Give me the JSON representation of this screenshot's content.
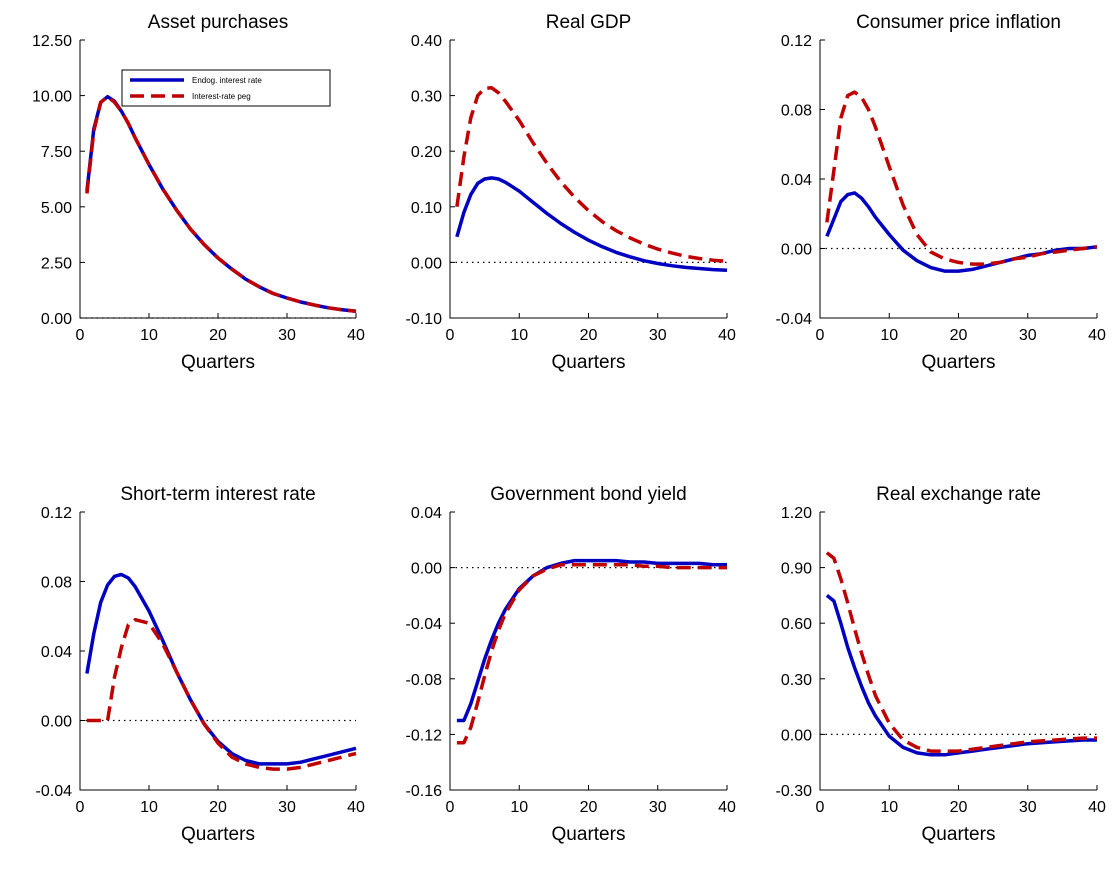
{
  "chart_data": [
    {
      "type": "line",
      "title": "Asset purchases",
      "xlabel": "Quarters",
      "xlim": [
        0,
        40
      ],
      "ylim": [
        0,
        12.5
      ],
      "xticks": [
        0,
        10,
        20,
        30,
        40
      ],
      "yticks": [
        "0.00",
        "2.50",
        "5.00",
        "7.50",
        "10.00",
        "12.50"
      ],
      "legend": {
        "placement": "top-center",
        "entries": [
          "Endog. interest rate",
          "Interest-rate peg"
        ]
      },
      "series": [
        {
          "name": "Endog. interest rate",
          "color": "#0000c0",
          "style": "solid",
          "x": [
            1,
            2,
            3,
            4,
            5,
            6,
            7,
            8,
            10,
            12,
            14,
            16,
            18,
            20,
            22,
            24,
            26,
            28,
            30,
            32,
            34,
            36,
            38,
            40
          ],
          "y": [
            5.7,
            8.5,
            9.7,
            9.95,
            9.75,
            9.3,
            8.75,
            8.1,
            6.9,
            5.8,
            4.85,
            4.0,
            3.3,
            2.7,
            2.2,
            1.75,
            1.4,
            1.1,
            0.9,
            0.72,
            0.58,
            0.46,
            0.37,
            0.3
          ]
        },
        {
          "name": "Interest-rate peg",
          "color": "#c00000",
          "style": "dashed",
          "x": [
            1,
            2,
            3,
            4,
            5,
            6,
            7,
            8,
            10,
            12,
            14,
            16,
            18,
            20,
            22,
            24,
            26,
            28,
            30,
            32,
            34,
            36,
            38,
            40
          ],
          "y": [
            5.6,
            8.4,
            9.7,
            9.95,
            9.7,
            9.3,
            8.75,
            8.1,
            6.9,
            5.8,
            4.85,
            4.0,
            3.3,
            2.7,
            2.2,
            1.75,
            1.4,
            1.1,
            0.9,
            0.72,
            0.58,
            0.46,
            0.37,
            0.3
          ]
        }
      ]
    },
    {
      "type": "line",
      "title": "Real GDP",
      "xlabel": "Quarters",
      "xlim": [
        0,
        40
      ],
      "ylim": [
        -0.1,
        0.4
      ],
      "xticks": [
        0,
        10,
        20,
        30,
        40
      ],
      "yticks": [
        "-0.10",
        "0.00",
        "0.10",
        "0.20",
        "0.30",
        "0.40"
      ],
      "series": [
        {
          "name": "Endog. interest rate",
          "color": "#0000c0",
          "style": "solid",
          "x": [
            1,
            2,
            3,
            4,
            5,
            6,
            7,
            8,
            10,
            12,
            14,
            16,
            18,
            20,
            22,
            24,
            26,
            28,
            30,
            32,
            34,
            36,
            38,
            40
          ],
          "y": [
            0.046,
            0.09,
            0.122,
            0.142,
            0.15,
            0.152,
            0.15,
            0.144,
            0.128,
            0.108,
            0.088,
            0.07,
            0.054,
            0.04,
            0.028,
            0.018,
            0.01,
            0.003,
            -0.002,
            -0.006,
            -0.009,
            -0.011,
            -0.013,
            -0.014
          ]
        },
        {
          "name": "Interest-rate peg",
          "color": "#c00000",
          "style": "dashed",
          "x": [
            1,
            2,
            3,
            4,
            5,
            6,
            7,
            8,
            10,
            12,
            14,
            16,
            18,
            20,
            22,
            24,
            26,
            28,
            30,
            32,
            34,
            36,
            38,
            40
          ],
          "y": [
            0.1,
            0.19,
            0.26,
            0.3,
            0.313,
            0.314,
            0.305,
            0.29,
            0.255,
            0.215,
            0.178,
            0.145,
            0.117,
            0.093,
            0.073,
            0.057,
            0.044,
            0.033,
            0.024,
            0.017,
            0.011,
            0.007,
            0.004,
            0.002
          ]
        }
      ]
    },
    {
      "type": "line",
      "title": "Consumer price inflation",
      "xlabel": "Quarters",
      "xlim": [
        0,
        40
      ],
      "ylim": [
        -0.04,
        0.12
      ],
      "xticks": [
        0,
        10,
        20,
        30,
        40
      ],
      "yticks": [
        "-0.04",
        "0.00",
        "0.04",
        "0.08",
        "0.12"
      ],
      "series": [
        {
          "name": "Endog. interest rate",
          "color": "#0000c0",
          "style": "solid",
          "x": [
            1,
            2,
            3,
            4,
            5,
            6,
            7,
            8,
            10,
            12,
            14,
            16,
            18,
            20,
            22,
            24,
            26,
            28,
            30,
            32,
            34,
            36,
            38,
            40
          ],
          "y": [
            0.007,
            0.017,
            0.027,
            0.031,
            0.032,
            0.029,
            0.024,
            0.018,
            0.008,
            -0.001,
            -0.007,
            -0.011,
            -0.013,
            -0.013,
            -0.012,
            -0.01,
            -0.008,
            -0.006,
            -0.004,
            -0.003,
            -0.001,
            0.0,
            0.0,
            0.001
          ]
        },
        {
          "name": "Interest-rate peg",
          "color": "#c00000",
          "style": "dashed",
          "x": [
            1,
            2,
            3,
            4,
            5,
            6,
            7,
            8,
            10,
            12,
            14,
            16,
            18,
            20,
            22,
            24,
            26,
            28,
            30,
            32,
            34,
            36,
            38,
            40
          ],
          "y": [
            0.015,
            0.045,
            0.075,
            0.088,
            0.09,
            0.087,
            0.08,
            0.07,
            0.047,
            0.025,
            0.008,
            -0.002,
            -0.006,
            -0.008,
            -0.009,
            -0.009,
            -0.008,
            -0.006,
            -0.005,
            -0.003,
            -0.002,
            -0.001,
            0.0,
            0.001
          ]
        }
      ]
    },
    {
      "type": "line",
      "title": "Short-term interest rate",
      "xlabel": "Quarters",
      "xlim": [
        0,
        40
      ],
      "ylim": [
        -0.04,
        0.12
      ],
      "xticks": [
        0,
        10,
        20,
        30,
        40
      ],
      "yticks": [
        "-0.04",
        "0.00",
        "0.04",
        "0.08",
        "0.12"
      ],
      "series": [
        {
          "name": "Endog. interest rate",
          "color": "#0000c0",
          "style": "solid",
          "x": [
            1,
            2,
            3,
            4,
            5,
            6,
            7,
            8,
            10,
            12,
            14,
            16,
            18,
            20,
            22,
            24,
            26,
            28,
            30,
            32,
            34,
            36,
            38,
            40
          ],
          "y": [
            0.027,
            0.05,
            0.068,
            0.078,
            0.083,
            0.084,
            0.082,
            0.077,
            0.063,
            0.046,
            0.028,
            0.012,
            -0.002,
            -0.012,
            -0.019,
            -0.023,
            -0.025,
            -0.025,
            -0.025,
            -0.024,
            -0.022,
            -0.02,
            -0.018,
            -0.016
          ]
        },
        {
          "name": "Interest-rate peg",
          "color": "#c00000",
          "style": "dashed",
          "x": [
            1,
            2,
            3,
            4,
            5,
            6,
            7,
            8,
            10,
            12,
            14,
            16,
            18,
            20,
            22,
            24,
            26,
            28,
            30,
            32,
            34,
            36,
            38,
            40
          ],
          "y": [
            0.0,
            0.0,
            0.0,
            0.0,
            0.025,
            0.042,
            0.055,
            0.058,
            0.056,
            0.044,
            0.028,
            0.012,
            -0.002,
            -0.013,
            -0.021,
            -0.025,
            -0.027,
            -0.028,
            -0.028,
            -0.027,
            -0.025,
            -0.023,
            -0.021,
            -0.019
          ]
        }
      ]
    },
    {
      "type": "line",
      "title": "Government bond yield",
      "xlabel": "Quarters",
      "xlim": [
        0,
        40
      ],
      "ylim": [
        -0.16,
        0.04
      ],
      "xticks": [
        0,
        10,
        20,
        30,
        40
      ],
      "yticks": [
        "-0.16",
        "-0.12",
        "-0.08",
        "-0.04",
        "0.00",
        "0.04"
      ],
      "series": [
        {
          "name": "Endog. interest rate",
          "color": "#0000c0",
          "style": "solid",
          "x": [
            1,
            2,
            3,
            4,
            5,
            6,
            7,
            8,
            10,
            12,
            14,
            16,
            18,
            20,
            22,
            24,
            26,
            28,
            30,
            32,
            34,
            36,
            38,
            40
          ],
          "y": [
            -0.11,
            -0.11,
            -0.098,
            -0.082,
            -0.066,
            -0.052,
            -0.04,
            -0.03,
            -0.015,
            -0.006,
            0.0,
            0.003,
            0.005,
            0.005,
            0.005,
            0.005,
            0.004,
            0.004,
            0.003,
            0.003,
            0.003,
            0.003,
            0.002,
            0.002
          ]
        },
        {
          "name": "Interest-rate peg",
          "color": "#c00000",
          "style": "dashed",
          "x": [
            1,
            2,
            3,
            4,
            5,
            6,
            7,
            8,
            10,
            12,
            14,
            16,
            18,
            20,
            22,
            24,
            26,
            28,
            30,
            32,
            34,
            36,
            38,
            40
          ],
          "y": [
            -0.126,
            -0.126,
            -0.115,
            -0.097,
            -0.078,
            -0.06,
            -0.045,
            -0.033,
            -0.016,
            -0.006,
            -0.001,
            0.002,
            0.002,
            0.002,
            0.002,
            0.002,
            0.002,
            0.001,
            0.001,
            0.0,
            0.0,
            0.0,
            0.0,
            0.0
          ]
        }
      ]
    },
    {
      "type": "line",
      "title": "Real exchange rate",
      "xlabel": "Quarters",
      "xlim": [
        0,
        40
      ],
      "ylim": [
        -0.3,
        1.2
      ],
      "xticks": [
        0,
        10,
        20,
        30,
        40
      ],
      "yticks": [
        "-0.30",
        "0.00",
        "0.30",
        "0.60",
        "0.90",
        "1.20"
      ],
      "series": [
        {
          "name": "Endog. interest rate",
          "color": "#0000c0",
          "style": "solid",
          "x": [
            1,
            2,
            3,
            4,
            5,
            6,
            7,
            8,
            10,
            12,
            14,
            16,
            18,
            20,
            22,
            24,
            26,
            28,
            30,
            32,
            34,
            36,
            38,
            40
          ],
          "y": [
            0.75,
            0.72,
            0.6,
            0.47,
            0.36,
            0.26,
            0.17,
            0.1,
            -0.01,
            -0.07,
            -0.1,
            -0.11,
            -0.11,
            -0.1,
            -0.09,
            -0.08,
            -0.07,
            -0.06,
            -0.05,
            -0.045,
            -0.04,
            -0.035,
            -0.03,
            -0.03
          ]
        },
        {
          "name": "Interest-rate peg",
          "color": "#c00000",
          "style": "dashed",
          "x": [
            1,
            2,
            3,
            4,
            5,
            6,
            7,
            8,
            10,
            12,
            14,
            16,
            18,
            20,
            22,
            24,
            26,
            28,
            30,
            32,
            34,
            36,
            38,
            40
          ],
          "y": [
            0.98,
            0.95,
            0.84,
            0.71,
            0.57,
            0.44,
            0.32,
            0.21,
            0.06,
            -0.03,
            -0.07,
            -0.09,
            -0.09,
            -0.09,
            -0.08,
            -0.07,
            -0.06,
            -0.05,
            -0.04,
            -0.035,
            -0.03,
            -0.025,
            -0.02,
            -0.02
          ]
        }
      ]
    }
  ]
}
